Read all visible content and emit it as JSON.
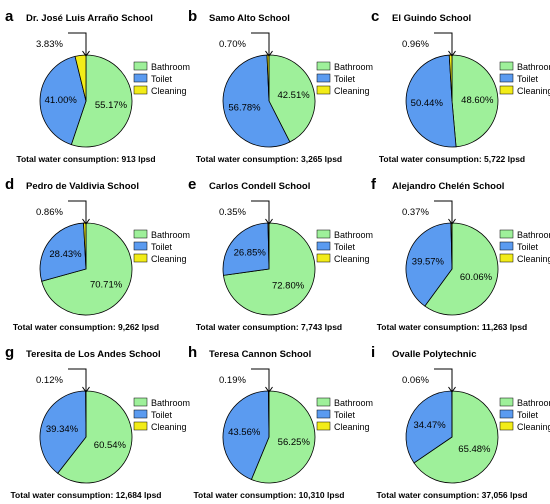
{
  "colors": {
    "bathroom": "#9ef09a",
    "toilet": "#5b9bf0",
    "cleaning": "#f2ec18",
    "outline": "#000000"
  },
  "legend_labels": [
    "Bathroom",
    "Toilet",
    "Cleaning"
  ],
  "chart_data": [
    {
      "type": "pie",
      "letter": "a",
      "title": "Dr. José Luis Arraño School",
      "slices": [
        {
          "label": "Bathroom",
          "value": 55.17,
          "text": "55.17%"
        },
        {
          "label": "Toilet",
          "value": 41.0,
          "text": "41.00%"
        },
        {
          "label": "Cleaning",
          "value": 3.83,
          "text": "3.83%"
        }
      ],
      "total": "Total water consumption: 913 lpsd"
    },
    {
      "type": "pie",
      "letter": "b",
      "title": "Samo Alto School",
      "slices": [
        {
          "label": "Bathroom",
          "value": 42.51,
          "text": "42.51%"
        },
        {
          "label": "Toilet",
          "value": 56.78,
          "text": "56.78%"
        },
        {
          "label": "Cleaning",
          "value": 0.7,
          "text": "0.70%"
        }
      ],
      "total": "Total water consumption: 3,265 lpsd"
    },
    {
      "type": "pie",
      "letter": "c",
      "title": "El Guindo School",
      "slices": [
        {
          "label": "Bathroom",
          "value": 48.6,
          "text": "48.60%"
        },
        {
          "label": "Toilet",
          "value": 50.44,
          "text": "50.44%"
        },
        {
          "label": "Cleaning",
          "value": 0.96,
          "text": "0.96%"
        }
      ],
      "total": "Total water consumption: 5,722 lpsd"
    },
    {
      "type": "pie",
      "letter": "d",
      "title": "Pedro de Valdivia School",
      "slices": [
        {
          "label": "Bathroom",
          "value": 70.71,
          "text": "70.71%"
        },
        {
          "label": "Toilet",
          "value": 28.43,
          "text": "28.43%"
        },
        {
          "label": "Cleaning",
          "value": 0.86,
          "text": "0.86%"
        }
      ],
      "total": "Total water consumption: 9,262 lpsd"
    },
    {
      "type": "pie",
      "letter": "e",
      "title": "Carlos Condell School",
      "slices": [
        {
          "label": "Bathroom",
          "value": 72.8,
          "text": "72.80%"
        },
        {
          "label": "Toilet",
          "value": 26.85,
          "text": "26.85%"
        },
        {
          "label": "Cleaning",
          "value": 0.35,
          "text": "0.35%"
        }
      ],
      "total": "Total water consumption: 7,743 lpsd"
    },
    {
      "type": "pie",
      "letter": "f",
      "title": "Alejandro Chelén School",
      "slices": [
        {
          "label": "Bathroom",
          "value": 60.06,
          "text": "60.06%"
        },
        {
          "label": "Toilet",
          "value": 39.57,
          "text": "39.57%"
        },
        {
          "label": "Cleaning",
          "value": 0.37,
          "text": "0.37%"
        }
      ],
      "total": "Total water consumption: 11,263 lpsd"
    },
    {
      "type": "pie",
      "letter": "g",
      "title": "Teresita de Los Andes School",
      "slices": [
        {
          "label": "Bathroom",
          "value": 60.54,
          "text": "60.54%"
        },
        {
          "label": "Toilet",
          "value": 39.34,
          "text": "39.34%"
        },
        {
          "label": "Cleaning",
          "value": 0.12,
          "text": "0.12%"
        }
      ],
      "total": "Total water consumption: 12,684 lpsd"
    },
    {
      "type": "pie",
      "letter": "h",
      "title": "Teresa Cannon School",
      "slices": [
        {
          "label": "Bathroom",
          "value": 56.25,
          "text": "56.25%"
        },
        {
          "label": "Toilet",
          "value": 43.56,
          "text": "43.56%"
        },
        {
          "label": "Cleaning",
          "value": 0.19,
          "text": "0.19%"
        }
      ],
      "total": "Total water consumption: 10,310 lpsd"
    },
    {
      "type": "pie",
      "letter": "i",
      "title": "Ovalle Polytechnic",
      "slices": [
        {
          "label": "Bathroom",
          "value": 65.48,
          "text": "65.48%"
        },
        {
          "label": "Toilet",
          "value": 34.47,
          "text": "34.47%"
        },
        {
          "label": "Cleaning",
          "value": 0.06,
          "text": "0.06%"
        }
      ],
      "total": "Total water consumption: 37,056 lpsd"
    }
  ]
}
